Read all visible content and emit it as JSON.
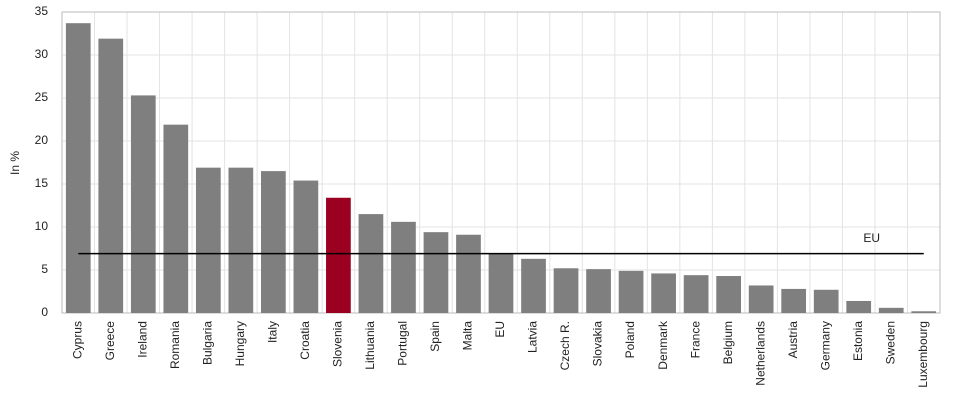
{
  "chart_data": {
    "type": "bar",
    "y_label": "In %",
    "categories": [
      "Cyprus",
      "Greece",
      "Ireland",
      "Romania",
      "Bulgaria",
      "Hungary",
      "Italy",
      "Croatia",
      "Slovenia",
      "Lithuania",
      "Portugal",
      "Spain",
      "Malta",
      "EU",
      "Latvia",
      "Czech R.",
      "Slovakia",
      "Poland",
      "Denmark",
      "France",
      "Belgium",
      "Netherlands",
      "Austria",
      "Germany",
      "Estonia",
      "Sweden",
      "Luxembourg"
    ],
    "values": [
      33.7,
      31.9,
      25.3,
      21.9,
      16.9,
      16.9,
      16.5,
      15.4,
      13.4,
      11.5,
      10.6,
      9.4,
      9.1,
      6.9,
      6.3,
      5.2,
      5.1,
      4.9,
      4.6,
      4.4,
      4.3,
      3.2,
      2.8,
      2.7,
      1.4,
      0.6,
      0.2
    ],
    "color": "#7f7f7f",
    "highlight": {
      "category": "Slovenia",
      "color": "#9b0020"
    },
    "reference_line": {
      "value": 6.9,
      "label": "EU",
      "color": "#000000"
    },
    "ylim": [
      0,
      35
    ],
    "yticks": [
      0,
      5,
      10,
      15,
      20,
      25,
      30,
      35
    ],
    "grid": true
  }
}
